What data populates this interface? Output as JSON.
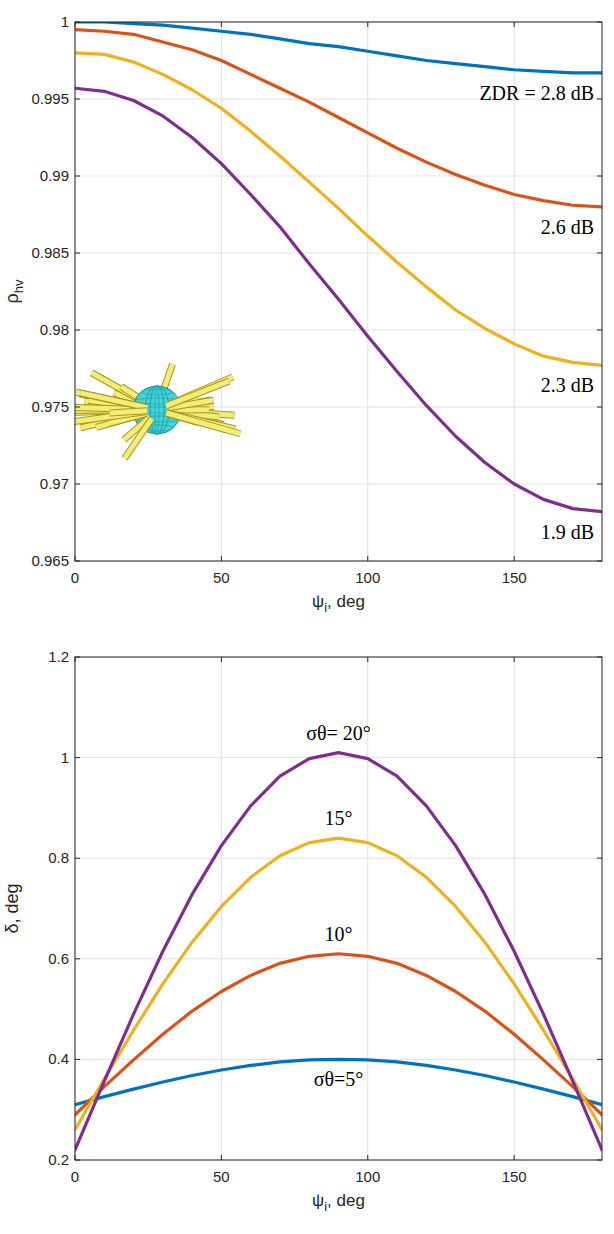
{
  "chart_data": [
    {
      "type": "line",
      "x": [
        0,
        10,
        20,
        30,
        40,
        50,
        60,
        70,
        80,
        90,
        100,
        110,
        120,
        130,
        140,
        150,
        160,
        170,
        180
      ],
      "xlim": [
        0,
        180
      ],
      "xticks": [
        0,
        50,
        100,
        150
      ],
      "ylim": [
        0.965,
        1
      ],
      "yticks": [
        0.965,
        0.97,
        0.975,
        0.98,
        0.985,
        0.99,
        0.995,
        1
      ],
      "grid": true,
      "xlabel": {
        "text": "ψ",
        "sub": "i",
        "suffix": ", deg"
      },
      "ylabel": {
        "text": "ρ",
        "sub": "hv"
      },
      "series": [
        {
          "name": "ZDR = 2.8 dB",
          "color": "#0072bd",
          "values": [
            1.0,
            1.0,
            0.9999,
            0.9998,
            0.9996,
            0.9994,
            0.9992,
            0.9989,
            0.9986,
            0.9984,
            0.9981,
            0.9978,
            0.9975,
            0.9973,
            0.9971,
            0.9969,
            0.9968,
            0.9967,
            0.9967
          ]
        },
        {
          "name": "2.6 dB",
          "color": "#d95319",
          "values": [
            0.9995,
            0.9994,
            0.9992,
            0.9987,
            0.9982,
            0.9975,
            0.9966,
            0.9957,
            0.9948,
            0.9938,
            0.9928,
            0.9918,
            0.9909,
            0.9901,
            0.9894,
            0.9888,
            0.9884,
            0.9881,
            0.988
          ]
        },
        {
          "name": "2.3 dB",
          "color": "#edb120",
          "values": [
            0.998,
            0.9979,
            0.9974,
            0.9966,
            0.9956,
            0.9944,
            0.9929,
            0.9913,
            0.9896,
            0.9879,
            0.9861,
            0.9844,
            0.9828,
            0.9813,
            0.9801,
            0.9791,
            0.9783,
            0.9779,
            0.9777
          ]
        },
        {
          "name": "1.9 dB",
          "color": "#7e2f8e",
          "values": [
            0.9957,
            0.9955,
            0.9949,
            0.9939,
            0.9925,
            0.9908,
            0.9888,
            0.9867,
            0.9843,
            0.982,
            0.9796,
            0.9773,
            0.9751,
            0.9731,
            0.9714,
            0.97,
            0.969,
            0.9684,
            0.9682
          ]
        }
      ]
    },
    {
      "type": "line",
      "x": [
        0,
        10,
        20,
        30,
        40,
        50,
        60,
        70,
        80,
        90,
        100,
        110,
        120,
        130,
        140,
        150,
        160,
        170,
        180
      ],
      "xlim": [
        0,
        180
      ],
      "xticks": [
        0,
        50,
        100,
        150
      ],
      "ylim": [
        0.2,
        1.2
      ],
      "yticks": [
        0.2,
        0.4,
        0.6,
        0.8,
        1,
        1.2
      ],
      "grid": true,
      "xlabel": {
        "text": "ψ",
        "sub": "i",
        "suffix": ", deg"
      },
      "ylabel": "δ, deg",
      "series": [
        {
          "name": "σθ=5°",
          "color": "#0072bd",
          "values": [
            0.31,
            0.326,
            0.341,
            0.355,
            0.368,
            0.379,
            0.388,
            0.395,
            0.399,
            0.4,
            0.399,
            0.395,
            0.388,
            0.379,
            0.368,
            0.355,
            0.341,
            0.326,
            0.31
          ]
        },
        {
          "name": "10°",
          "color": "#d95319",
          "values": [
            0.29,
            0.346,
            0.399,
            0.45,
            0.496,
            0.535,
            0.567,
            0.591,
            0.605,
            0.61,
            0.605,
            0.591,
            0.567,
            0.535,
            0.496,
            0.45,
            0.399,
            0.346,
            0.29
          ]
        },
        {
          "name": "15°",
          "color": "#edb120",
          "values": [
            0.26,
            0.361,
            0.458,
            0.55,
            0.633,
            0.704,
            0.762,
            0.805,
            0.831,
            0.84,
            0.831,
            0.805,
            0.762,
            0.704,
            0.633,
            0.55,
            0.458,
            0.361,
            0.26
          ]
        },
        {
          "name": "σθ= 20°",
          "color": "#7e2f8e",
          "values": [
            0.22,
            0.357,
            0.49,
            0.615,
            0.728,
            0.825,
            0.904,
            0.963,
            0.998,
            1.01,
            0.998,
            0.963,
            0.904,
            0.825,
            0.728,
            0.615,
            0.49,
            0.357,
            0.22
          ]
        }
      ]
    }
  ]
}
